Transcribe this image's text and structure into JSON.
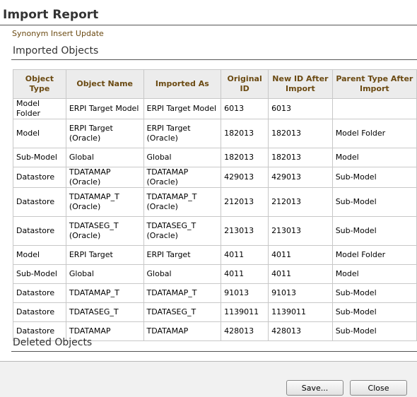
{
  "title": "Import Report",
  "subtitle": "Synonym Insert Update",
  "sections": {
    "imported": "Imported Objects",
    "deleted": "Deleted Objects"
  },
  "table": {
    "headers": [
      "Object Type",
      "Object Name",
      "Imported As",
      "Original ID",
      "New ID After Import",
      "Parent Type After Import"
    ],
    "rows": [
      [
        "Model Folder",
        "ERPI Target Model",
        "ERPI Target Model",
        "6013",
        "6013",
        ""
      ],
      [
        "Model",
        "ERPI Target (Oracle)",
        "ERPI Target (Oracle)",
        "182013",
        "182013",
        "Model Folder"
      ],
      [
        "Sub-Model",
        "Global",
        "Global",
        "182013",
        "182013",
        "Model"
      ],
      [
        "Datastore",
        "TDATAMAP (Oracle)",
        "TDATAMAP (Oracle)",
        "429013",
        "429013",
        "Sub-Model"
      ],
      [
        "Datastore",
        "TDATAMAP_T (Oracle)",
        "TDATAMAP_T (Oracle)",
        "212013",
        "212013",
        "Sub-Model"
      ],
      [
        "Datastore",
        "TDATASEG_T (Oracle)",
        "TDATASEG_T (Oracle)",
        "213013",
        "213013",
        "Sub-Model"
      ],
      [
        "Model",
        "ERPI Target",
        "ERPI Target",
        "4011",
        "4011",
        "Model Folder"
      ],
      [
        "Sub-Model",
        "Global",
        "Global",
        "4011",
        "4011",
        "Model"
      ],
      [
        "Datastore",
        "TDATAMAP_T",
        "TDATAMAP_T",
        "91013",
        "91013",
        "Sub-Model"
      ],
      [
        "Datastore",
        "TDATASEG_T",
        "TDATASEG_T",
        "1139011",
        "1139011",
        "Sub-Model"
      ],
      [
        "Datastore",
        "TDATAMAP",
        "TDATAMAP",
        "428013",
        "428013",
        "Sub-Model"
      ]
    ]
  },
  "buttons": {
    "save": "Save...",
    "close": "Close"
  }
}
